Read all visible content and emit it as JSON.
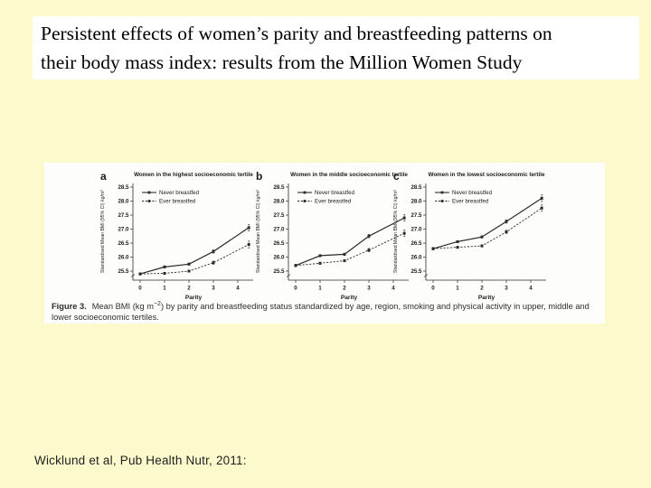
{
  "slide": {
    "background_color": "#FCFACD",
    "title_line1": "Persistent effects of women’s parity and breastfeeding patterns on",
    "title_line2": "their body mass index: results from the Million Women Study",
    "citation": "Wicklund et al, Pub Health Nutr, 2011:"
  },
  "figure": {
    "caption_label": "Figure 3.",
    "caption_pre": "Mean BMI (kg m",
    "caption_sup": "−2",
    "caption_post": ") by parity and breastfeeding status standardized by age, region, smoking and physical activity in upper, middle and lower socioeconomic tertiles."
  },
  "chart_style": {
    "ink_color": "#2b2b2b",
    "background": "#FDFDFB",
    "marker": "filled-square",
    "error_bar_halfwidths": [
      0.04,
      0.04,
      0.04,
      0.06,
      0.12
    ]
  },
  "chart_data": [
    {
      "type": "line",
      "panel_label": "a",
      "title": "Women in the highest socioeconomic tertile",
      "xlabel": "Parity",
      "ylabel": "Standardised Mean BMI (95% CI) kg/m²",
      "x_ticks": [
        0,
        1,
        2,
        3,
        4
      ],
      "x_positions": [
        0,
        1,
        2,
        3,
        4.45
      ],
      "y_ticks": [
        25.5,
        26.0,
        26.5,
        27.0,
        27.5,
        28.0,
        28.5
      ],
      "ylim": [
        25.3,
        28.6
      ],
      "grid": false,
      "legend_position": "top-left",
      "series": [
        {
          "name": "Never breastfed",
          "line": "solid",
          "values": [
            25.4,
            25.65,
            25.75,
            26.2,
            27.05
          ]
        },
        {
          "name": "Ever breastfed",
          "line": "dashed",
          "values": [
            25.4,
            25.42,
            25.5,
            25.8,
            26.45
          ]
        }
      ]
    },
    {
      "type": "line",
      "panel_label": "b",
      "title": "Women in the middle socioeconomic tertile",
      "xlabel": "Parity",
      "ylabel": "Standardised Mean BMI (95% CI) kg/m²",
      "x_ticks": [
        0,
        1,
        2,
        3,
        4
      ],
      "x_positions": [
        0,
        1,
        2,
        3,
        4.45
      ],
      "y_ticks": [
        25.5,
        26.0,
        26.5,
        27.0,
        27.5,
        28.0,
        28.5
      ],
      "ylim": [
        25.3,
        28.6
      ],
      "grid": false,
      "legend_position": "top-left",
      "series": [
        {
          "name": "Never breastfed",
          "line": "solid",
          "values": [
            25.7,
            26.05,
            26.1,
            26.75,
            27.4
          ]
        },
        {
          "name": "Ever breastfed",
          "line": "dashed",
          "values": [
            25.7,
            25.78,
            25.87,
            26.25,
            26.85
          ]
        }
      ]
    },
    {
      "type": "line",
      "panel_label": "c",
      "title": "Women in the lowest socioeconomic tertile",
      "xlabel": "Parity",
      "ylabel": "Standardised Mean BMI (95% CI) kg/m²",
      "x_ticks": [
        0,
        1,
        2,
        3,
        4
      ],
      "x_positions": [
        0,
        1,
        2,
        3,
        4.45
      ],
      "y_ticks": [
        25.5,
        26.0,
        26.5,
        27.0,
        27.5,
        28.0,
        28.5
      ],
      "ylim": [
        25.3,
        28.6
      ],
      "grid": false,
      "legend_position": "top-left",
      "series": [
        {
          "name": "Never breastfed",
          "line": "solid",
          "values": [
            26.3,
            26.55,
            26.72,
            27.27,
            28.1
          ]
        },
        {
          "name": "Ever breastfed",
          "line": "dashed",
          "values": [
            26.3,
            26.35,
            26.4,
            26.9,
            27.75
          ]
        }
      ]
    }
  ]
}
